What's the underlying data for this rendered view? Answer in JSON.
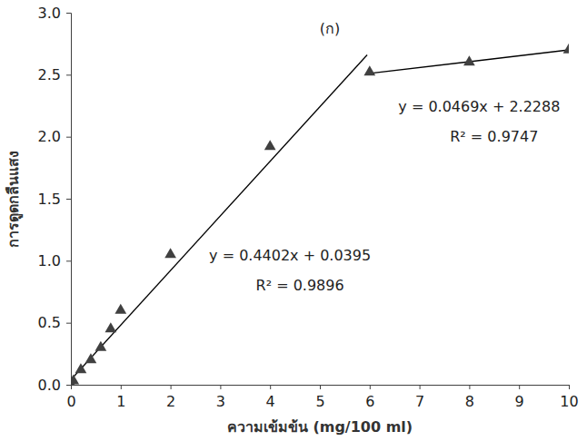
{
  "chart_data": {
    "type": "scatter",
    "x_label": "ความเข้มข้น  (mg/100 ml)",
    "y_label": "การดูดกลืนแสง",
    "xlim": [
      0,
      10
    ],
    "xticks": [
      0,
      1,
      2,
      3,
      4,
      5,
      6,
      7,
      8,
      9,
      10
    ],
    "ylim": [
      0,
      3
    ],
    "yticks": [
      {
        "value": 0,
        "label": "0.0"
      },
      {
        "value": 0.5,
        "label": "0.5"
      },
      {
        "value": 1,
        "label": "1.0"
      },
      {
        "value": 1.5,
        "label": "1.5"
      },
      {
        "value": 2,
        "label": "2.0"
      },
      {
        "value": 2.5,
        "label": "2.5"
      },
      {
        "value": 3,
        "label": "3.0"
      }
    ],
    "grid": false,
    "series": [
      {
        "type": "scatter",
        "marker": "triangle",
        "color": "#404040",
        "x": [
          0,
          0.05,
          0.2,
          0.4,
          0.6,
          0.8,
          1,
          2,
          4,
          6,
          8,
          10
        ],
        "values": [
          0,
          0.03,
          0.12,
          0.2,
          0.3,
          0.45,
          0.6,
          1.05,
          1.92,
          2.52,
          2.6,
          2.7
        ]
      },
      {
        "type": "line",
        "line_style": "solid",
        "color": "#000000",
        "x": [
          0,
          5.95
        ],
        "values": [
          0.04,
          2.66
        ]
      },
      {
        "type": "line",
        "line_style": "solid",
        "color": "#000000",
        "x": [
          6,
          10
        ],
        "values": [
          2.51,
          2.7
        ]
      }
    ],
    "annotations": [
      {
        "text": "(ก)",
        "x": 5.2,
        "y": 2.83
      },
      {
        "text": "y = 0.0469x + 2.2288",
        "x": 8.2,
        "y": 2.2
      },
      {
        "text": "R² = 0.9747",
        "x": 8.5,
        "y": 1.96
      },
      {
        "text": "y = 0.4402x + 0.0395",
        "x": 4.4,
        "y": 1.0
      },
      {
        "text": "R² = 0.9896",
        "x": 4.6,
        "y": 0.76
      }
    ]
  }
}
